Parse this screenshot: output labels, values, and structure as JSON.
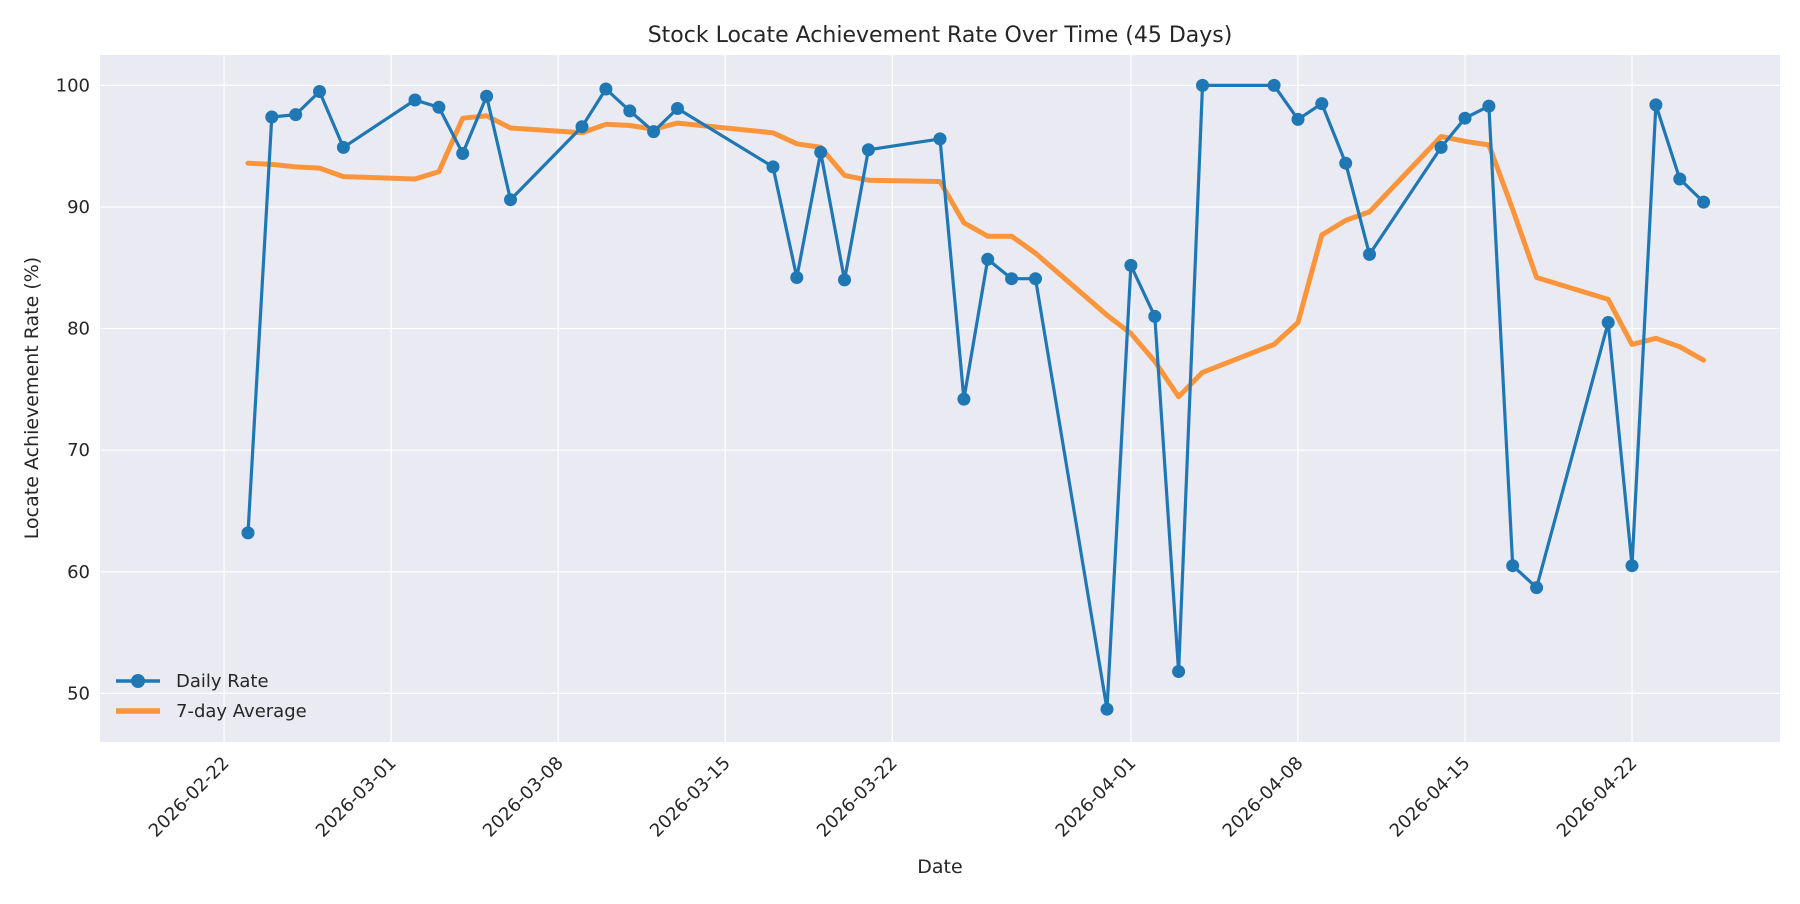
{
  "chart_data": {
    "type": "line",
    "title": "Stock Locate Achievement Rate Over Time (45 Days)",
    "xlabel": "Date",
    "ylabel": "Locate Achievement Rate (%)",
    "x_axis_type": "date",
    "xlim": [
      "2026-02-20",
      "2026-04-25"
    ],
    "ylim": [
      46,
      102.5
    ],
    "x_ticks": [
      "2026-02-22",
      "2026-03-01",
      "2026-03-08",
      "2026-03-15",
      "2026-03-22",
      "2026-04-01",
      "2026-04-08",
      "2026-04-15",
      "2026-04-22"
    ],
    "y_ticks": [
      50,
      60,
      70,
      80,
      90,
      100
    ],
    "grid": true,
    "legend_position": "lower-left",
    "series": [
      {
        "name": "Daily Rate",
        "color": "#1f77b4",
        "marker": "circle",
        "points": [
          [
            "2026-02-23",
            63.2
          ],
          [
            "2026-02-24",
            97.4
          ],
          [
            "2026-02-25",
            97.6
          ],
          [
            "2026-02-26",
            99.5
          ],
          [
            "2026-02-27",
            94.9
          ],
          [
            "2026-03-02",
            98.8
          ],
          [
            "2026-03-03",
            98.2
          ],
          [
            "2026-03-04",
            94.4
          ],
          [
            "2026-03-05",
            99.1
          ],
          [
            "2026-03-06",
            90.6
          ],
          [
            "2026-03-09",
            96.6
          ],
          [
            "2026-03-10",
            99.7
          ],
          [
            "2026-03-11",
            97.9
          ],
          [
            "2026-03-12",
            96.2
          ],
          [
            "2026-03-13",
            98.1
          ],
          [
            "2026-03-17",
            93.3
          ],
          [
            "2026-03-18",
            84.2
          ],
          [
            "2026-03-19",
            94.5
          ],
          [
            "2026-03-20",
            84.0
          ],
          [
            "2026-03-21",
            94.7
          ],
          [
            "2026-03-24",
            95.6
          ],
          [
            "2026-03-25",
            74.2
          ],
          [
            "2026-03-26",
            85.7
          ],
          [
            "2026-03-27",
            84.1
          ],
          [
            "2026-03-28",
            84.1
          ],
          [
            "2026-03-31",
            48.7
          ],
          [
            "2026-04-01",
            85.2
          ],
          [
            "2026-04-02",
            81.0
          ],
          [
            "2026-04-03",
            51.8
          ],
          [
            "2026-04-04",
            100.0
          ],
          [
            "2026-04-07",
            100.0
          ],
          [
            "2026-04-08",
            97.2
          ],
          [
            "2026-04-09",
            98.5
          ],
          [
            "2026-04-10",
            93.6
          ],
          [
            "2026-04-11",
            86.1
          ],
          [
            "2026-04-14",
            94.9
          ],
          [
            "2026-04-15",
            97.3
          ],
          [
            "2026-04-16",
            98.3
          ],
          [
            "2026-04-17",
            60.5
          ],
          [
            "2026-04-18",
            58.7
          ],
          [
            "2026-04-21",
            80.5
          ],
          [
            "2026-04-22",
            60.5
          ],
          [
            "2026-04-23",
            98.4
          ],
          [
            "2026-04-24",
            92.3
          ],
          [
            "2026-04-25",
            90.4
          ]
        ]
      },
      {
        "name": "7-day Average",
        "color": "#ff7f0e",
        "marker": "none",
        "points": [
          [
            "2026-02-23",
            93.6
          ],
          [
            "2026-02-24",
            93.5
          ],
          [
            "2026-02-25",
            93.3
          ],
          [
            "2026-02-26",
            93.2
          ],
          [
            "2026-02-27",
            92.5
          ],
          [
            "2026-03-02",
            92.3
          ],
          [
            "2026-03-03",
            92.9
          ],
          [
            "2026-03-04",
            97.3
          ],
          [
            "2026-03-05",
            97.5
          ],
          [
            "2026-03-06",
            96.5
          ],
          [
            "2026-03-09",
            96.1
          ],
          [
            "2026-03-10",
            96.8
          ],
          [
            "2026-03-11",
            96.7
          ],
          [
            "2026-03-12",
            96.4
          ],
          [
            "2026-03-13",
            96.9
          ],
          [
            "2026-03-17",
            96.1
          ],
          [
            "2026-03-18",
            95.2
          ],
          [
            "2026-03-19",
            94.9
          ],
          [
            "2026-03-20",
            92.6
          ],
          [
            "2026-03-21",
            92.2
          ],
          [
            "2026-03-24",
            92.1
          ],
          [
            "2026-03-25",
            88.7
          ],
          [
            "2026-03-26",
            87.6
          ],
          [
            "2026-03-27",
            87.6
          ],
          [
            "2026-03-28",
            86.2
          ],
          [
            "2026-03-31",
            81.1
          ],
          [
            "2026-04-01",
            79.6
          ],
          [
            "2026-04-02",
            77.3
          ],
          [
            "2026-04-03",
            74.4
          ],
          [
            "2026-04-04",
            76.4
          ],
          [
            "2026-04-07",
            78.7
          ],
          [
            "2026-04-08",
            80.5
          ],
          [
            "2026-04-09",
            87.7
          ],
          [
            "2026-04-10",
            88.9
          ],
          [
            "2026-04-11",
            89.6
          ],
          [
            "2026-04-14",
            95.8
          ],
          [
            "2026-04-15",
            95.4
          ],
          [
            "2026-04-16",
            95.1
          ],
          [
            "2026-04-17",
            89.8
          ],
          [
            "2026-04-18",
            84.2
          ],
          [
            "2026-04-21",
            82.4
          ],
          [
            "2026-04-22",
            78.7
          ],
          [
            "2026-04-23",
            79.2
          ],
          [
            "2026-04-24",
            78.5
          ],
          [
            "2026-04-25",
            77.4
          ]
        ]
      }
    ]
  }
}
